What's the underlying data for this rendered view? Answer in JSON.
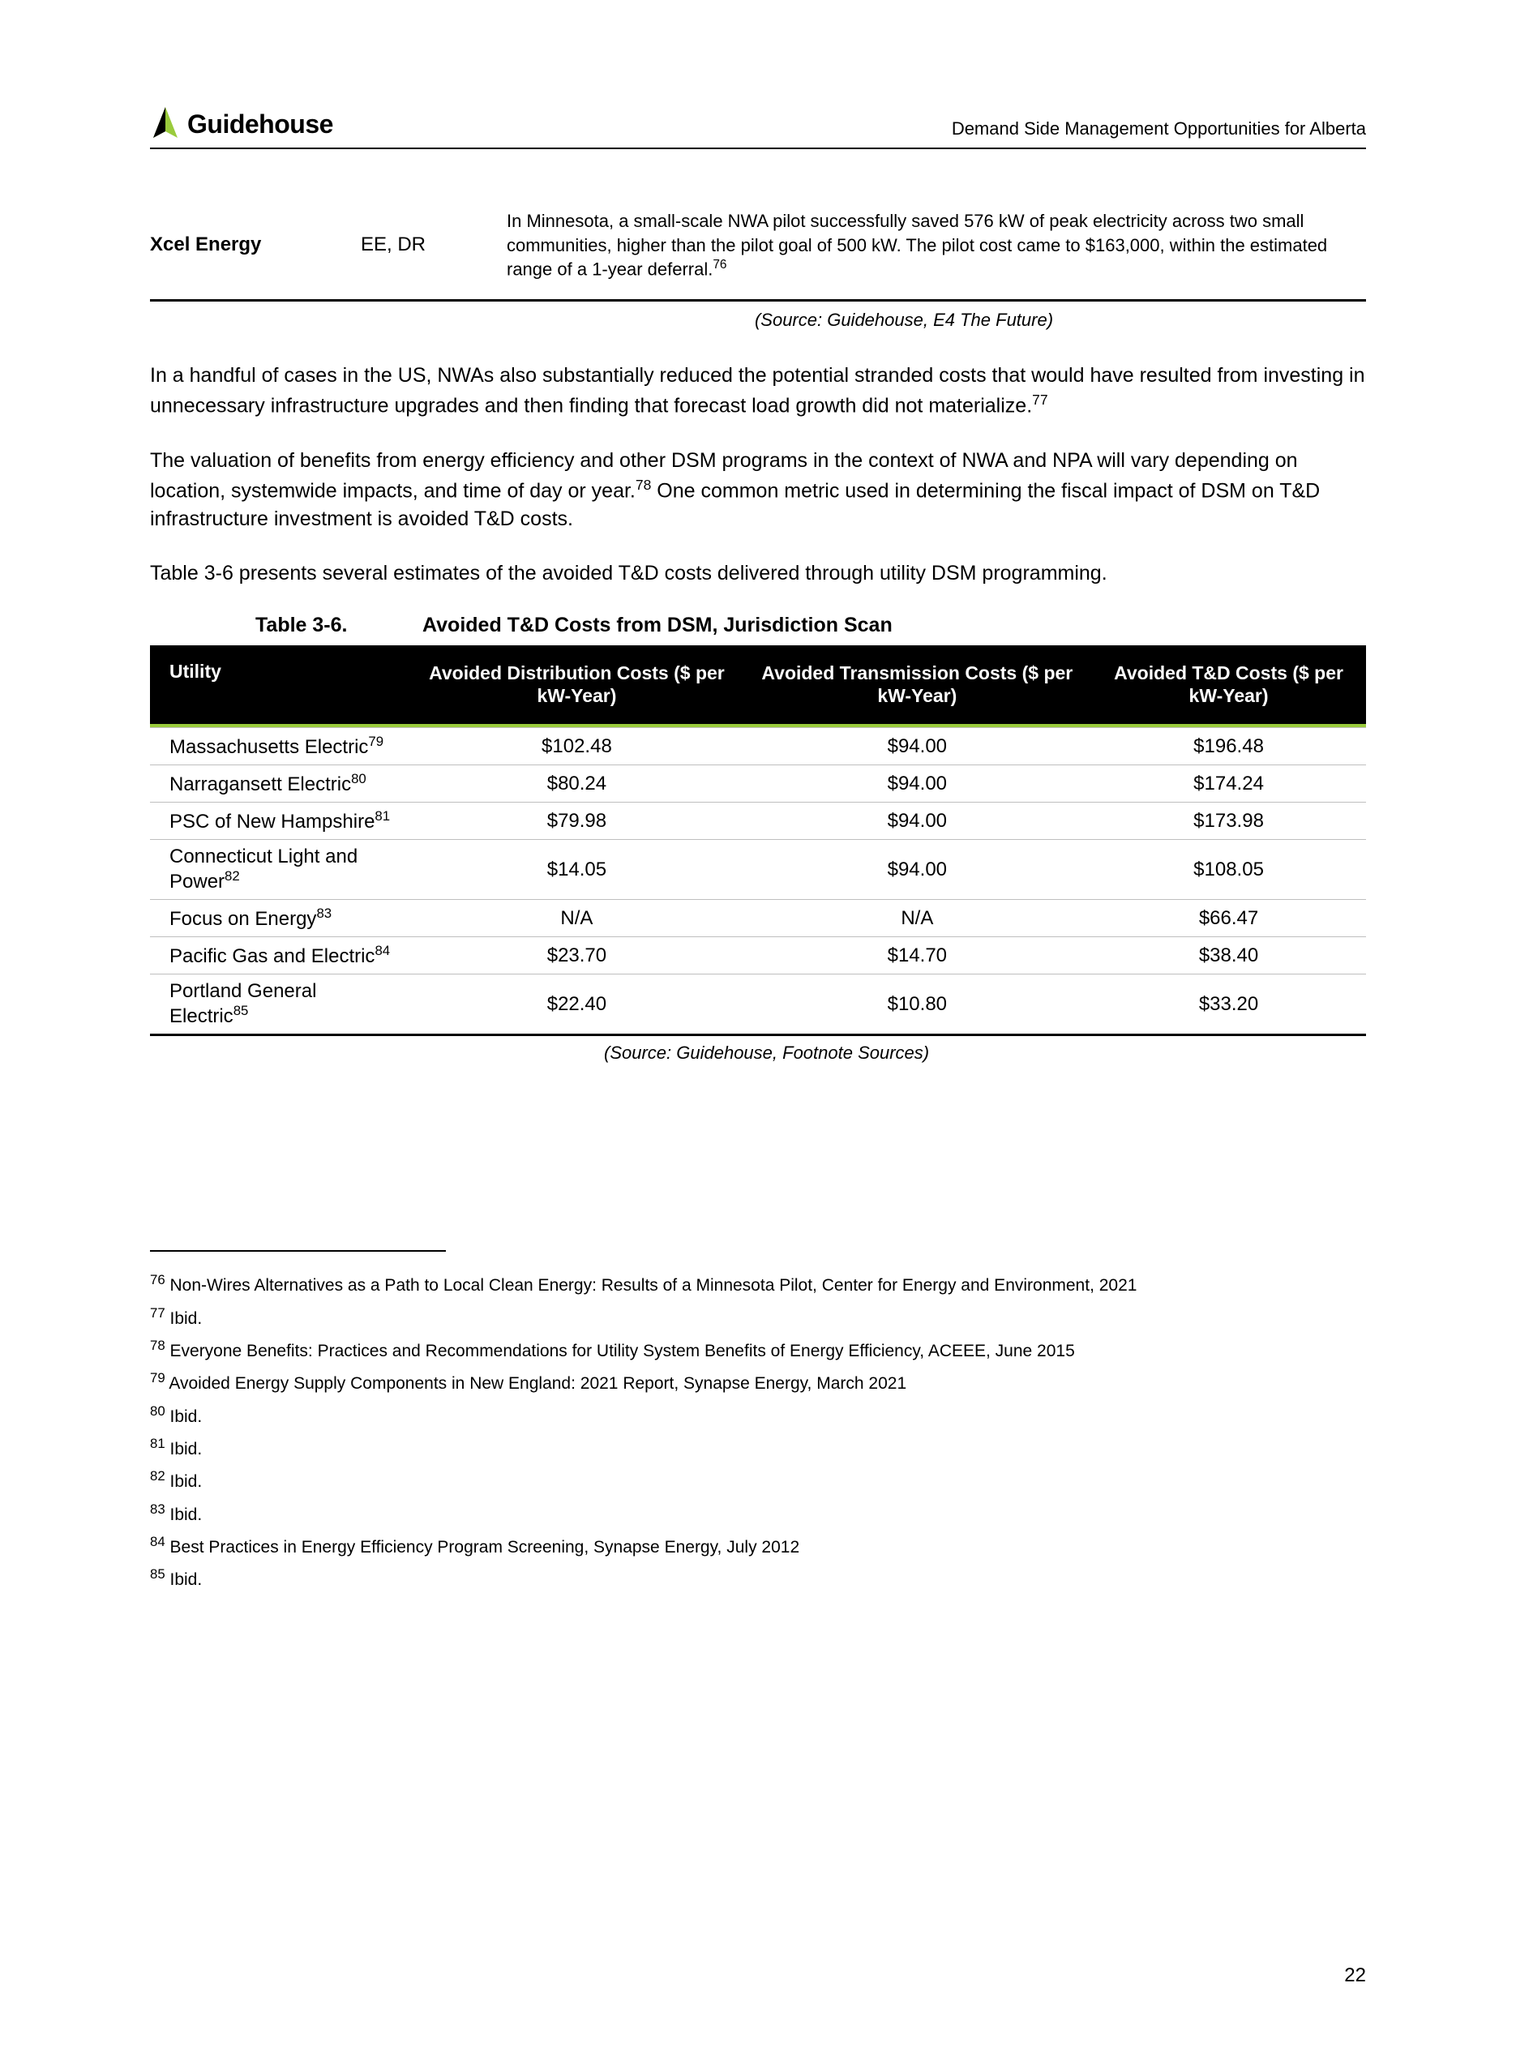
{
  "brand": "Guidehouse",
  "doc_title": "Demand Side Management Opportunities for Alberta",
  "logo_accent_color": "#9acb3c",
  "info_row": {
    "utility": "Xcel Energy",
    "types": "EE, DR",
    "description": "In Minnesota, a small-scale NWA pilot successfully saved 576 kW of peak electricity across two small communities, higher than the pilot goal of 500 kW. The pilot cost came to $163,000, within the estimated range of a 1-year deferral.",
    "footnote_ref": "76"
  },
  "source1": "(Source: Guidehouse, E4 The Future)",
  "paragraphs": {
    "p1": {
      "text": "In a handful of cases in the US, NWAs also substantially reduced the potential stranded costs that would have resulted from investing in unnecessary infrastructure upgrades and then finding that forecast load growth did not materialize.",
      "ref": "77"
    },
    "p2": {
      "pre": "The valuation of benefits from energy efficiency and other DSM programs in the context of NWA and NPA will vary depending on location, systemwide impacts, and time of day or year.",
      "ref": "78",
      "post": " One common metric used in determining the fiscal impact of DSM on T&D infrastructure investment is avoided T&D costs."
    },
    "p3": "Table 3-6 presents several estimates of the avoided T&D costs delivered through utility DSM programming."
  },
  "table_label": "Table 3-6.",
  "table_title": "Avoided T&D Costs from DSM, Jurisdiction Scan",
  "table": {
    "header_bg": "#000000",
    "header_fg": "#ffffff",
    "accent_color": "#9acb3c",
    "row_border_color": "#bfbfbf",
    "columns": [
      "Utility",
      "Avoided Distribution Costs ($ per kW-Year)",
      "Avoided Transmission Costs ($ per kW-Year)",
      "Avoided T&D Costs ($ per kW-Year)"
    ],
    "rows": [
      {
        "utility": "Massachusetts Electric",
        "ref": "79",
        "dist": "$102.48",
        "trans": "$94.00",
        "td": "$196.48"
      },
      {
        "utility": "Narragansett Electric",
        "ref": "80",
        "dist": "$80.24",
        "trans": "$94.00",
        "td": "$174.24"
      },
      {
        "utility": "PSC of New Hampshire",
        "ref": "81",
        "dist": "$79.98",
        "trans": "$94.00",
        "td": "$173.98"
      },
      {
        "utility": "Connecticut Light and Power",
        "ref": "82",
        "dist": "$14.05",
        "trans": "$94.00",
        "td": "$108.05"
      },
      {
        "utility": "Focus on Energy",
        "ref": "83",
        "dist": "N/A",
        "trans": "N/A",
        "td": "$66.47"
      },
      {
        "utility": "Pacific Gas and Electric",
        "ref": "84",
        "dist": "$23.70",
        "trans": "$14.70",
        "td": "$38.40"
      },
      {
        "utility": "Portland General Electric",
        "ref": "85",
        "dist": "$22.40",
        "trans": "$10.80",
        "td": "$33.20"
      }
    ]
  },
  "source2": "(Source: Guidehouse, Footnote Sources)",
  "footnotes": [
    {
      "ref": "76",
      "text": " Non-Wires Alternatives as a Path to Local Clean Energy: Results of a Minnesota Pilot, Center for Energy and Environment, 2021"
    },
    {
      "ref": "77",
      "text": " Ibid."
    },
    {
      "ref": "78",
      "text": " Everyone Benefits: Practices and Recommendations for Utility System Benefits of Energy Efficiency, ACEEE, June 2015"
    },
    {
      "ref": "79",
      "text": " Avoided Energy Supply Components in New England: 2021 Report, Synapse Energy, March 2021"
    },
    {
      "ref": "80",
      "text": " Ibid."
    },
    {
      "ref": "81",
      "text": " Ibid."
    },
    {
      "ref": "82",
      "text": " Ibid."
    },
    {
      "ref": "83",
      "text": " Ibid."
    },
    {
      "ref": "84",
      "text": " Best Practices in Energy Efficiency Program Screening, Synapse Energy, July 2012"
    },
    {
      "ref": "85",
      "text": " Ibid."
    }
  ],
  "page_number": "22"
}
